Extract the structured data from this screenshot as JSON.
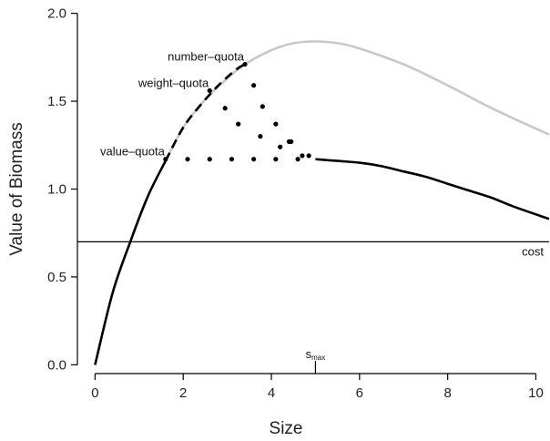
{
  "chart_data": {
    "type": "line",
    "title": "",
    "xlabel": "Size",
    "ylabel": "Value of Biomass",
    "xlim": [
      -0.4,
      10.3
    ],
    "ylim": [
      -0.05,
      2.05
    ],
    "x_ticks": [
      "0",
      "2",
      "4",
      "6",
      "8",
      "10"
    ],
    "y_ticks": [
      "0.0",
      "0.5",
      "1.0",
      "1.5",
      "2.0"
    ],
    "grid": false,
    "legend": "none",
    "series": [
      {
        "style": "solid-black",
        "color": "#000000",
        "x": [
          0,
          0.4,
          0.8,
          1.2,
          1.6
        ],
        "y": [
          0.0,
          0.41,
          0.7,
          0.96,
          1.16
        ]
      },
      {
        "style": "dashed-black",
        "color": "#000000",
        "x": [
          1.6,
          2.0,
          2.4,
          2.8,
          3.2,
          3.4
        ],
        "y": [
          1.16,
          1.35,
          1.48,
          1.59,
          1.68,
          1.71
        ]
      },
      {
        "style": "solid-gray",
        "color": "#c8c8c8",
        "x": [
          1.6,
          2.0,
          2.5,
          3.0,
          3.4,
          4.0,
          4.5,
          5.0,
          5.5,
          6.0,
          7.0,
          8.0,
          9.0,
          10.3
        ],
        "y": [
          1.16,
          1.35,
          1.51,
          1.63,
          1.71,
          1.79,
          1.83,
          1.84,
          1.83,
          1.8,
          1.71,
          1.59,
          1.46,
          1.31
        ]
      },
      {
        "style": "solid-black",
        "color": "#000000",
        "x": [
          5.0,
          5.5,
          6.0,
          6.5,
          7.0,
          7.5,
          8.0,
          8.5,
          9.0,
          9.5,
          10.3
        ],
        "y": [
          1.17,
          1.16,
          1.15,
          1.13,
          1.1,
          1.07,
          1.03,
          0.99,
          0.95,
          0.9,
          0.83
        ]
      }
    ],
    "points": {
      "x": [
        1.6,
        2.1,
        2.6,
        3.1,
        3.6,
        4.1,
        4.6,
        4.7,
        4.85,
        2.6,
        2.95,
        3.25,
        3.75,
        4.2,
        4.4,
        3.4,
        3.6,
        3.8,
        4.1,
        4.45
      ],
      "y": [
        1.17,
        1.17,
        1.17,
        1.17,
        1.17,
        1.17,
        1.17,
        1.19,
        1.19,
        1.56,
        1.46,
        1.37,
        1.3,
        1.24,
        1.27,
        1.71,
        1.59,
        1.47,
        1.37,
        1.27
      ]
    },
    "cost_line": {
      "y": 0.7,
      "label": "cost"
    },
    "annotations": [
      {
        "text": "number–quota",
        "x": 3.4,
        "y": 1.71
      },
      {
        "text": "weight–quota",
        "x": 2.6,
        "y": 1.56
      },
      {
        "text": "value–quota",
        "x": 1.6,
        "y": 1.17
      }
    ],
    "smax": {
      "x": 5.0,
      "label": "s",
      "subscript": "max"
    }
  }
}
